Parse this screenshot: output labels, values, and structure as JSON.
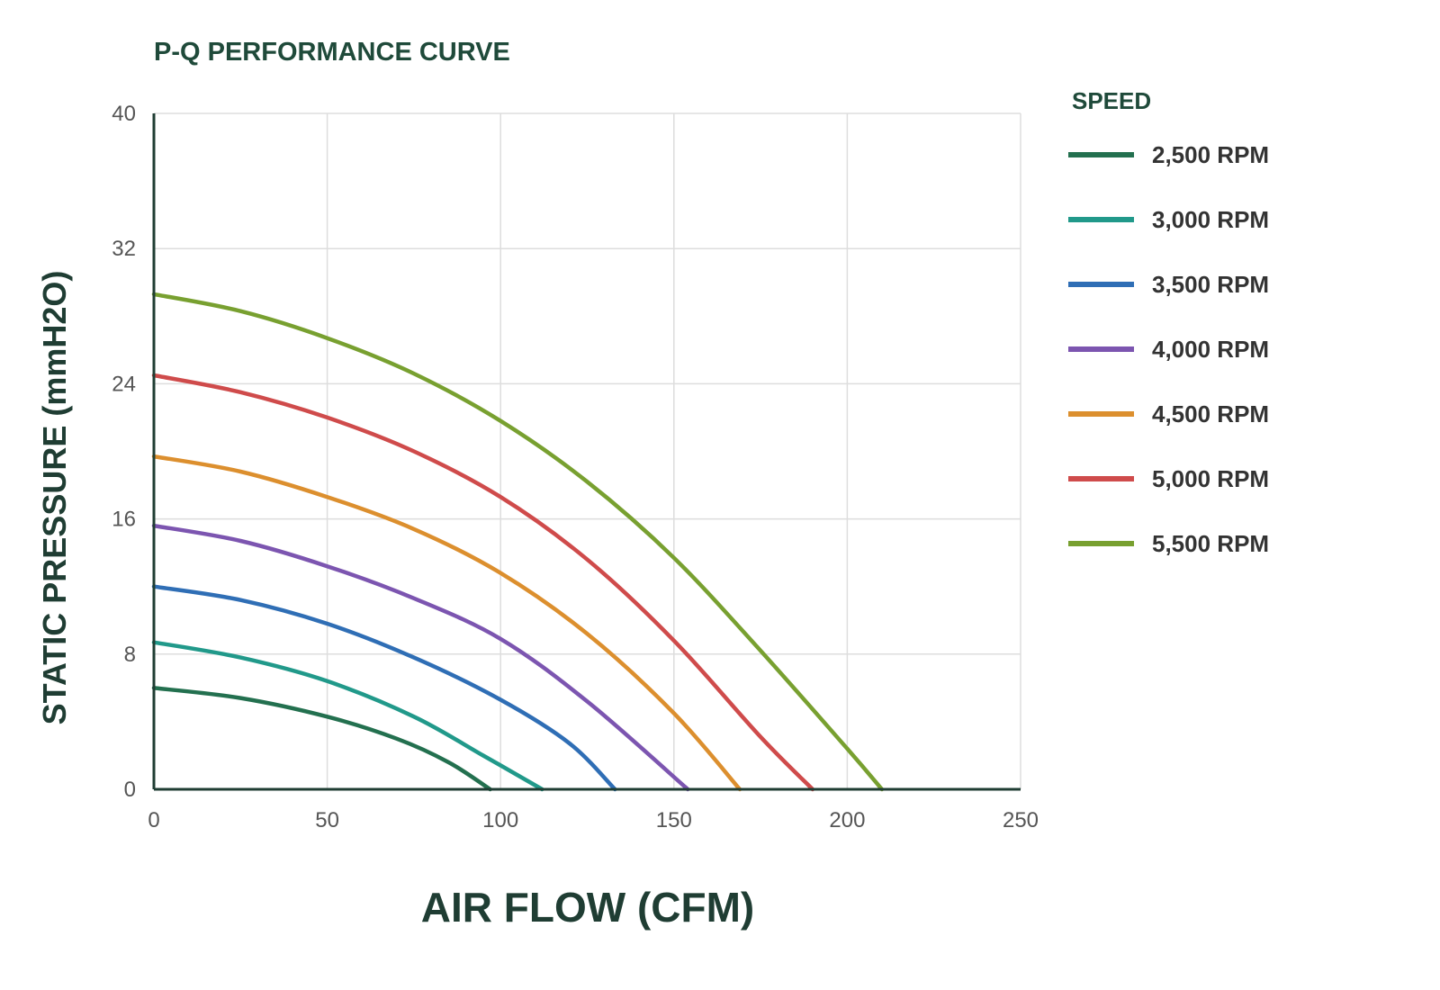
{
  "chart_data": {
    "type": "line",
    "title": "P-Q PERFORMANCE CURVE",
    "xlabel": "AIR FLOW (CFM)",
    "ylabel": "STATIC PRESSURE (mmH2O)",
    "xlim": [
      0,
      250
    ],
    "ylim": [
      0,
      40
    ],
    "xticks": [
      "0",
      "50",
      "100",
      "150",
      "200",
      "250"
    ],
    "yticks": [
      "0",
      "8",
      "16",
      "24",
      "32",
      "40"
    ],
    "grid": true,
    "legend_title": "SPEED",
    "legend_position": "right",
    "series": [
      {
        "name": "2,500 RPM",
        "color": "#23704f",
        "x": [
          0,
          25,
          50,
          70,
          85,
          97
        ],
        "y": [
          6.0,
          5.4,
          4.3,
          3.0,
          1.6,
          0.0
        ]
      },
      {
        "name": "3,000 RPM",
        "color": "#21998a",
        "x": [
          0,
          25,
          50,
          75,
          95,
          112
        ],
        "y": [
          8.7,
          7.8,
          6.4,
          4.3,
          2.0,
          0.0
        ]
      },
      {
        "name": "3,500 RPM",
        "color": "#2f6eb5",
        "x": [
          0,
          25,
          50,
          75,
          100,
          120,
          133
        ],
        "y": [
          12.0,
          11.2,
          9.8,
          7.8,
          5.3,
          2.7,
          0.0
        ]
      },
      {
        "name": "4,000 RPM",
        "color": "#7c55b0",
        "x": [
          0,
          25,
          50,
          75,
          100,
          125,
          154
        ],
        "y": [
          15.6,
          14.7,
          13.2,
          11.3,
          8.9,
          5.2,
          0.0
        ]
      },
      {
        "name": "4,500 RPM",
        "color": "#dc8f2e",
        "x": [
          0,
          25,
          50,
          75,
          100,
          125,
          150,
          169
        ],
        "y": [
          19.7,
          18.8,
          17.3,
          15.4,
          12.8,
          9.2,
          4.5,
          0.0
        ]
      },
      {
        "name": "5,000 RPM",
        "color": "#cf4b4b",
        "x": [
          0,
          25,
          50,
          75,
          100,
          125,
          150,
          175,
          190
        ],
        "y": [
          24.5,
          23.5,
          22.0,
          20.0,
          17.3,
          13.6,
          8.8,
          3.1,
          0.0
        ]
      },
      {
        "name": "5,500 RPM",
        "color": "#78a030",
        "x": [
          0,
          25,
          50,
          75,
          100,
          125,
          150,
          175,
          200,
          210
        ],
        "y": [
          29.3,
          28.3,
          26.7,
          24.6,
          21.8,
          18.2,
          13.7,
          8.2,
          2.4,
          0.0
        ]
      }
    ]
  }
}
